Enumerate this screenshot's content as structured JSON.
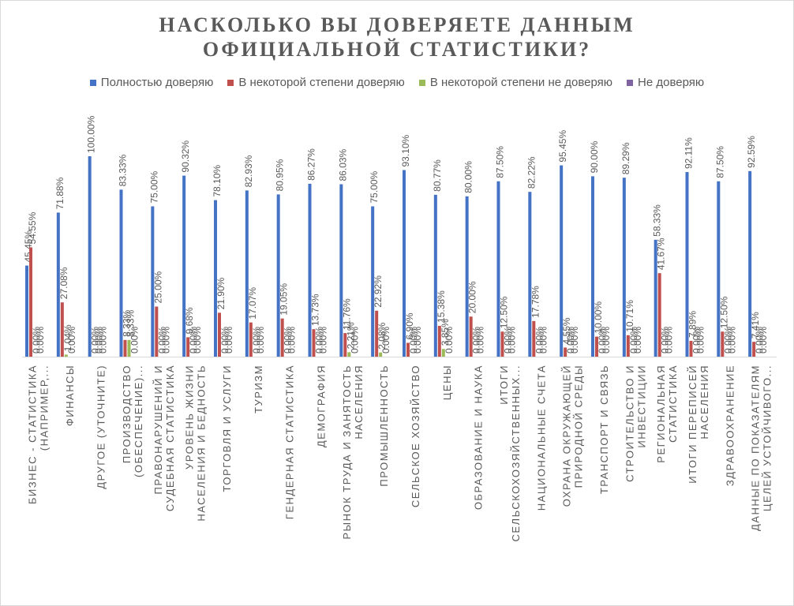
{
  "title_lines": [
    "НАСКОЛЬКО ВЫ ДОВЕРЯЕТЕ ДАННЫМ",
    "ОФИЦИАЛЬНОЙ СТАТИСТИКИ?"
  ],
  "colors": [
    "#4472c4",
    "#c0504d",
    "#9bbb59",
    "#8064a2"
  ],
  "chart_data": {
    "type": "bar",
    "title": "НАСКОЛЬКО ВЫ ДОВЕРЯЕТЕ ДАННЫМ ОФИЦИАЛЬНОЙ СТАТИСТИКИ?",
    "legend_position": "top",
    "grid": false,
    "ylim": [
      0,
      100
    ],
    "categories": [
      [
        "БИЗНЕС - СТАТИСТИКА",
        "(НАПРИМЕР,..."
      ],
      [
        "ФИНАНСЫ"
      ],
      [
        "ДРУГОЕ (УТОЧНИТЕ)"
      ],
      [
        "ПРОИЗВОДСТВО",
        "(ОБЕСПЕЧЕНИЕ)..."
      ],
      [
        "ПРАВОНАРУШЕНИЙ И",
        "СУДЕБНАЯ СТАТИСТИКА"
      ],
      [
        "УРОВЕНЬ ЖИЗНИ",
        "НАСЕЛЕНИЯ И БЕДНОСТЬ"
      ],
      [
        "ТОРГОВЛЯ И УСЛУГИ"
      ],
      [
        "ТУРИЗМ"
      ],
      [
        "ГЕНДЕРНАЯ СТАТИСТИКА"
      ],
      [
        "ДЕМОГРАФИЯ"
      ],
      [
        "РЫНОК ТРУДА И ЗАНЯТОСТЬ",
        "НАСЕЛЕНИЯ"
      ],
      [
        "ПРОМЫШЛЕННОСТЬ"
      ],
      [
        "СЕЛЬСКОЕ ХОЗЯЙСТВО"
      ],
      [
        "ЦЕНЫ"
      ],
      [
        "ОБРАЗОВАНИЕ И НАУКА"
      ],
      [
        "ИТОГИ",
        "СЕЛЬСКОХОЗЯЙСТВЕННЫХ..."
      ],
      [
        "НАЦИОНАЛЬНЫЕ СЧЕТА"
      ],
      [
        "ОХРАНА ОКРУЖАЮЩЕЙ",
        "ПРИРОДНОЙ СРЕДЫ"
      ],
      [
        "ТРАНСПОРТ И СВЯЗЬ"
      ],
      [
        "СТРОИТЕЛЬСТВО И",
        "ИНВЕСТИЦИИ"
      ],
      [
        "РЕГИОНАЛЬНАЯ",
        "СТАТИСТИКА"
      ],
      [
        "ИТОГИ ПЕРЕПИСЕЙ",
        "НАСЕЛЕНИЯ"
      ],
      [
        "ЗДРАВООХРАНЕНИЕ"
      ],
      [
        "ДАННЫЕ ПО ПОКАЗАТЕЛЯМ",
        "ЦЕЛЕЙ УСТОЙЧИВОГО..."
      ]
    ],
    "series": [
      {
        "name": "Полностью доверяю",
        "values": [
          45.45,
          71.88,
          100.0,
          83.33,
          75.0,
          90.32,
          78.1,
          82.93,
          80.95,
          86.27,
          86.03,
          75.0,
          93.1,
          80.77,
          80.0,
          87.5,
          82.22,
          95.45,
          90.0,
          89.29,
          58.33,
          92.11,
          87.5,
          92.59
        ]
      },
      {
        "name": "В некоторой степени доверяю",
        "values": [
          54.55,
          27.08,
          0.0,
          8.33,
          25.0,
          9.68,
          21.9,
          17.07,
          19.05,
          13.73,
          11.76,
          22.92,
          6.9,
          15.38,
          20.0,
          12.5,
          17.78,
          4.55,
          10.0,
          10.71,
          41.67,
          7.89,
          12.5,
          7.41
        ]
      },
      {
        "name": "В некоторой степени не доверяю",
        "values": [
          0.0,
          1.04,
          0.0,
          8.33,
          0.0,
          0.0,
          0.0,
          0.0,
          0.0,
          0.0,
          2.21,
          2.08,
          0.0,
          3.85,
          0.0,
          0.0,
          0.0,
          0.0,
          0.0,
          0.0,
          0.0,
          0.0,
          0.0,
          0.0
        ]
      },
      {
        "name": "Не доверяю",
        "values": [
          0.0,
          0.0,
          0.0,
          0.0,
          0.0,
          0.0,
          0.0,
          0.0,
          0.0,
          0.0,
          0.0,
          0.0,
          0.0,
          0.0,
          0.0,
          0.0,
          0.0,
          0.0,
          0.0,
          0.0,
          0.0,
          0.0,
          0.0,
          0.0
        ]
      }
    ]
  }
}
